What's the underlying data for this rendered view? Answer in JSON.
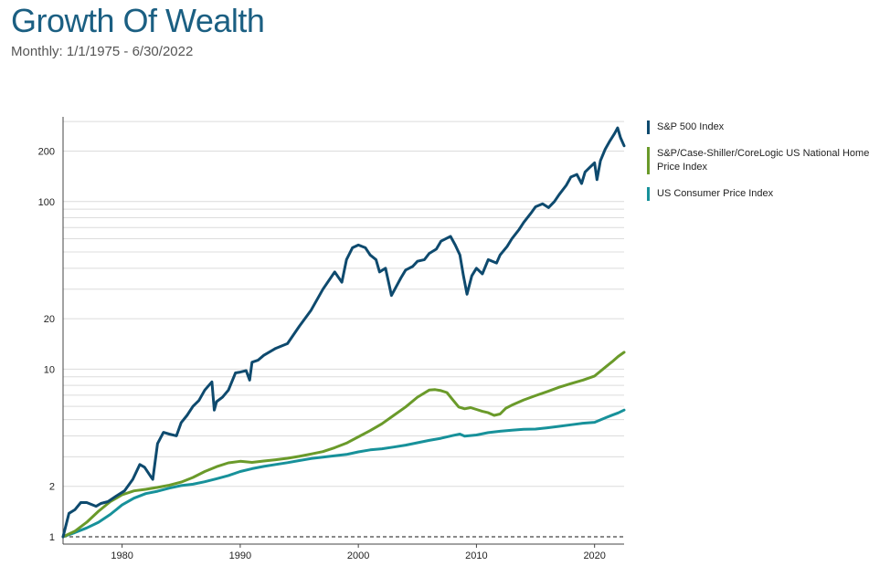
{
  "header": {
    "title": "Growth Of Wealth",
    "subtitle": "Monthly: 1/1/1975 - 6/30/2022"
  },
  "chart_data": {
    "type": "line",
    "title": "Growth Of Wealth",
    "subtitle": "Monthly: 1/1/1975 - 6/30/2022",
    "y_scale": "log",
    "ylim": [
      1,
      320
    ],
    "xlim": [
      1975.0,
      2022.5
    ],
    "y_ticks": [
      1,
      2,
      10,
      20,
      100,
      200
    ],
    "x_ticks": [
      1980,
      1990,
      2000,
      2010,
      2020
    ],
    "reference_line": {
      "y": 1,
      "style": "dashed"
    },
    "grid": true,
    "legend_position": "right",
    "series": [
      {
        "name": "S&P 500 Index",
        "color": "#0e4a6e",
        "x": [
          1975.0,
          1975.5,
          1976.0,
          1976.5,
          1977.0,
          1977.8,
          1978.2,
          1978.8,
          1979.5,
          1980.2,
          1980.9,
          1981.5,
          1981.9,
          1982.4,
          1982.6,
          1983.0,
          1983.5,
          1984.0,
          1984.6,
          1985.0,
          1985.5,
          1986.0,
          1986.5,
          1987.0,
          1987.6,
          1987.8,
          1988.0,
          1988.5,
          1989.0,
          1989.6,
          1990.0,
          1990.5,
          1990.8,
          1991.0,
          1991.5,
          1992.0,
          1993.0,
          1994.0,
          1995.0,
          1996.0,
          1997.0,
          1998.0,
          1998.6,
          1999.0,
          1999.5,
          2000.0,
          2000.6,
          2001.0,
          2001.5,
          2001.8,
          2002.3,
          2002.6,
          2002.8,
          2003.2,
          2003.6,
          2004.0,
          2004.6,
          2005.0,
          2005.6,
          2006.0,
          2006.6,
          2007.0,
          2007.8,
          2008.2,
          2008.6,
          2008.9,
          2009.2,
          2009.6,
          2010.0,
          2010.5,
          2011.0,
          2011.7,
          2012.0,
          2012.6,
          2013.0,
          2013.6,
          2014.0,
          2014.6,
          2015.0,
          2015.6,
          2016.1,
          2016.6,
          2017.0,
          2017.6,
          2018.0,
          2018.5,
          2018.9,
          2019.2,
          2019.6,
          2020.0,
          2020.2,
          2020.5,
          2020.9,
          2021.3,
          2021.7,
          2021.95,
          2022.2,
          2022.5
        ],
        "y": [
          1.0,
          1.38,
          1.45,
          1.6,
          1.6,
          1.52,
          1.58,
          1.62,
          1.75,
          1.88,
          2.2,
          2.7,
          2.6,
          2.3,
          2.2,
          3.6,
          4.2,
          4.1,
          4.0,
          4.8,
          5.3,
          6.0,
          6.5,
          7.5,
          8.4,
          5.7,
          6.4,
          6.8,
          7.5,
          9.5,
          9.6,
          9.8,
          8.6,
          11.0,
          11.3,
          12.1,
          13.3,
          14.2,
          18.0,
          22.5,
          30.0,
          38.0,
          33.0,
          45.0,
          53.0,
          55.0,
          53.0,
          48.0,
          45.0,
          38.0,
          40.0,
          32.0,
          27.5,
          31.0,
          35.0,
          39.0,
          41.0,
          44.0,
          45.0,
          49.0,
          52.0,
          58.0,
          62.0,
          55.0,
          48.0,
          36.0,
          28.0,
          36.0,
          40.0,
          37.0,
          45.0,
          43.0,
          48.0,
          54.0,
          60.0,
          68.0,
          75.0,
          85.0,
          93.0,
          97.0,
          92.0,
          100.0,
          110.0,
          125.0,
          140.0,
          145.0,
          128.0,
          150.0,
          160.0,
          170.0,
          135.0,
          175.0,
          205.0,
          230.0,
          255.0,
          275.0,
          240.0,
          215.0
        ]
      },
      {
        "name": "S&P/Case-Shiller/CoreLogic US National Home Price Index",
        "color": "#6a9a2a",
        "x": [
          1975.0,
          1976.0,
          1977.0,
          1978.0,
          1979.0,
          1980.0,
          1981.0,
          1982.0,
          1983.0,
          1984.0,
          1985.0,
          1986.0,
          1987.0,
          1988.0,
          1989.0,
          1990.0,
          1991.0,
          1992.0,
          1993.0,
          1994.0,
          1995.0,
          1996.0,
          1997.0,
          1998.0,
          1999.0,
          2000.0,
          2001.0,
          2002.0,
          2003.0,
          2004.0,
          2005.0,
          2006.0,
          2006.5,
          2007.0,
          2007.5,
          2008.0,
          2008.5,
          2009.0,
          2009.5,
          2010.0,
          2010.5,
          2011.0,
          2011.5,
          2012.0,
          2012.5,
          2013.0,
          2014.0,
          2015.0,
          2016.0,
          2017.0,
          2018.0,
          2019.0,
          2020.0,
          2021.0,
          2021.5,
          2022.0,
          2022.5
        ],
        "y": [
          1.0,
          1.08,
          1.22,
          1.42,
          1.62,
          1.78,
          1.88,
          1.92,
          1.97,
          2.03,
          2.12,
          2.26,
          2.45,
          2.62,
          2.76,
          2.82,
          2.78,
          2.83,
          2.88,
          2.94,
          3.02,
          3.12,
          3.22,
          3.4,
          3.62,
          3.95,
          4.3,
          4.72,
          5.3,
          5.95,
          6.8,
          7.5,
          7.55,
          7.45,
          7.25,
          6.55,
          5.95,
          5.8,
          5.9,
          5.75,
          5.6,
          5.5,
          5.3,
          5.4,
          5.85,
          6.1,
          6.55,
          6.95,
          7.35,
          7.8,
          8.2,
          8.6,
          9.1,
          10.4,
          11.1,
          11.9,
          12.6
        ]
      },
      {
        "name": "US Consumer Price Index",
        "color": "#17919a",
        "x": [
          1975.0,
          1976.0,
          1977.0,
          1978.0,
          1979.0,
          1980.0,
          1981.0,
          1982.0,
          1983.0,
          1984.0,
          1985.0,
          1986.0,
          1987.0,
          1988.0,
          1989.0,
          1990.0,
          1991.0,
          1992.0,
          1993.0,
          1994.0,
          1995.0,
          1996.0,
          1997.0,
          1998.0,
          1999.0,
          2000.0,
          2001.0,
          2002.0,
          2003.0,
          2004.0,
          2005.0,
          2006.0,
          2007.0,
          2008.0,
          2008.6,
          2009.0,
          2010.0,
          2011.0,
          2012.0,
          2013.0,
          2014.0,
          2015.0,
          2016.0,
          2017.0,
          2018.0,
          2019.0,
          2020.0,
          2021.0,
          2021.5,
          2022.0,
          2022.5
        ],
        "y": [
          1.0,
          1.06,
          1.13,
          1.22,
          1.36,
          1.55,
          1.7,
          1.81,
          1.87,
          1.95,
          2.02,
          2.06,
          2.13,
          2.22,
          2.32,
          2.45,
          2.55,
          2.63,
          2.7,
          2.77,
          2.85,
          2.93,
          2.99,
          3.04,
          3.1,
          3.21,
          3.3,
          3.35,
          3.43,
          3.52,
          3.64,
          3.76,
          3.87,
          4.02,
          4.1,
          3.98,
          4.05,
          4.18,
          4.26,
          4.32,
          4.38,
          4.39,
          4.47,
          4.56,
          4.66,
          4.76,
          4.82,
          5.15,
          5.32,
          5.48,
          5.7
        ]
      }
    ]
  }
}
